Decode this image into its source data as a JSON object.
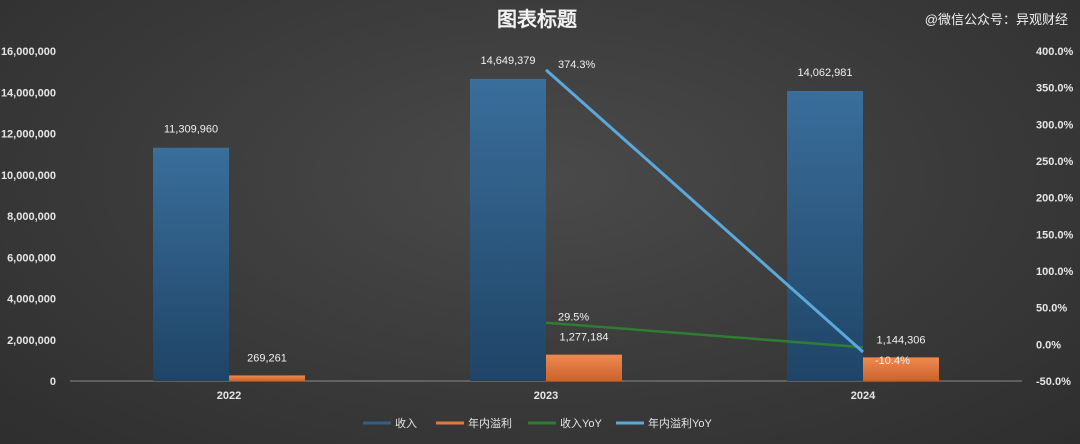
{
  "watermark": "@微信公众号：异观财经",
  "colors": {
    "revenue": "#2f5f8a",
    "profit": "#e0773d",
    "revenue_yoy": "#2e7d32",
    "profit_yoy": "#5aa9dc"
  },
  "chart_data": {
    "type": "bar",
    "title": "图表标题",
    "categories": [
      "2022",
      "2023",
      "2024"
    ],
    "ylim": [
      0,
      16000000
    ],
    "y_ticks": [
      "0",
      "2,000,000",
      "4,000,000",
      "6,000,000",
      "8,000,000",
      "10,000,000",
      "12,000,000",
      "14,000,000",
      "16,000,000"
    ],
    "y2lim": [
      -50,
      400
    ],
    "y2_ticks": [
      "-50.0%",
      "0.0%",
      "50.0%",
      "100.0%",
      "150.0%",
      "200.0%",
      "250.0%",
      "300.0%",
      "350.0%",
      "400.0%"
    ],
    "legend_position": "bottom",
    "grid": false,
    "series": [
      {
        "name": "收入",
        "kind": "bar",
        "axis": "left",
        "values": [
          11309960,
          14649379,
          14062981
        ],
        "labels": [
          "11,309,960",
          "14,649,379",
          "14,062,981"
        ]
      },
      {
        "name": "年内溢利",
        "kind": "bar",
        "axis": "left",
        "values": [
          269261,
          1277184,
          1144306
        ],
        "labels": [
          "269,261",
          "1,277,184",
          "1,144,306"
        ]
      },
      {
        "name": "收入YoY",
        "kind": "line",
        "axis": "right",
        "values": [
          null,
          29.5,
          -4.0
        ],
        "labels": [
          "",
          "29.5%",
          ""
        ]
      },
      {
        "name": "年内溢利YoY",
        "kind": "line",
        "axis": "right",
        "values": [
          null,
          374.3,
          -10.4
        ],
        "labels": [
          "",
          "374.3%",
          "-10.4%"
        ]
      }
    ]
  }
}
